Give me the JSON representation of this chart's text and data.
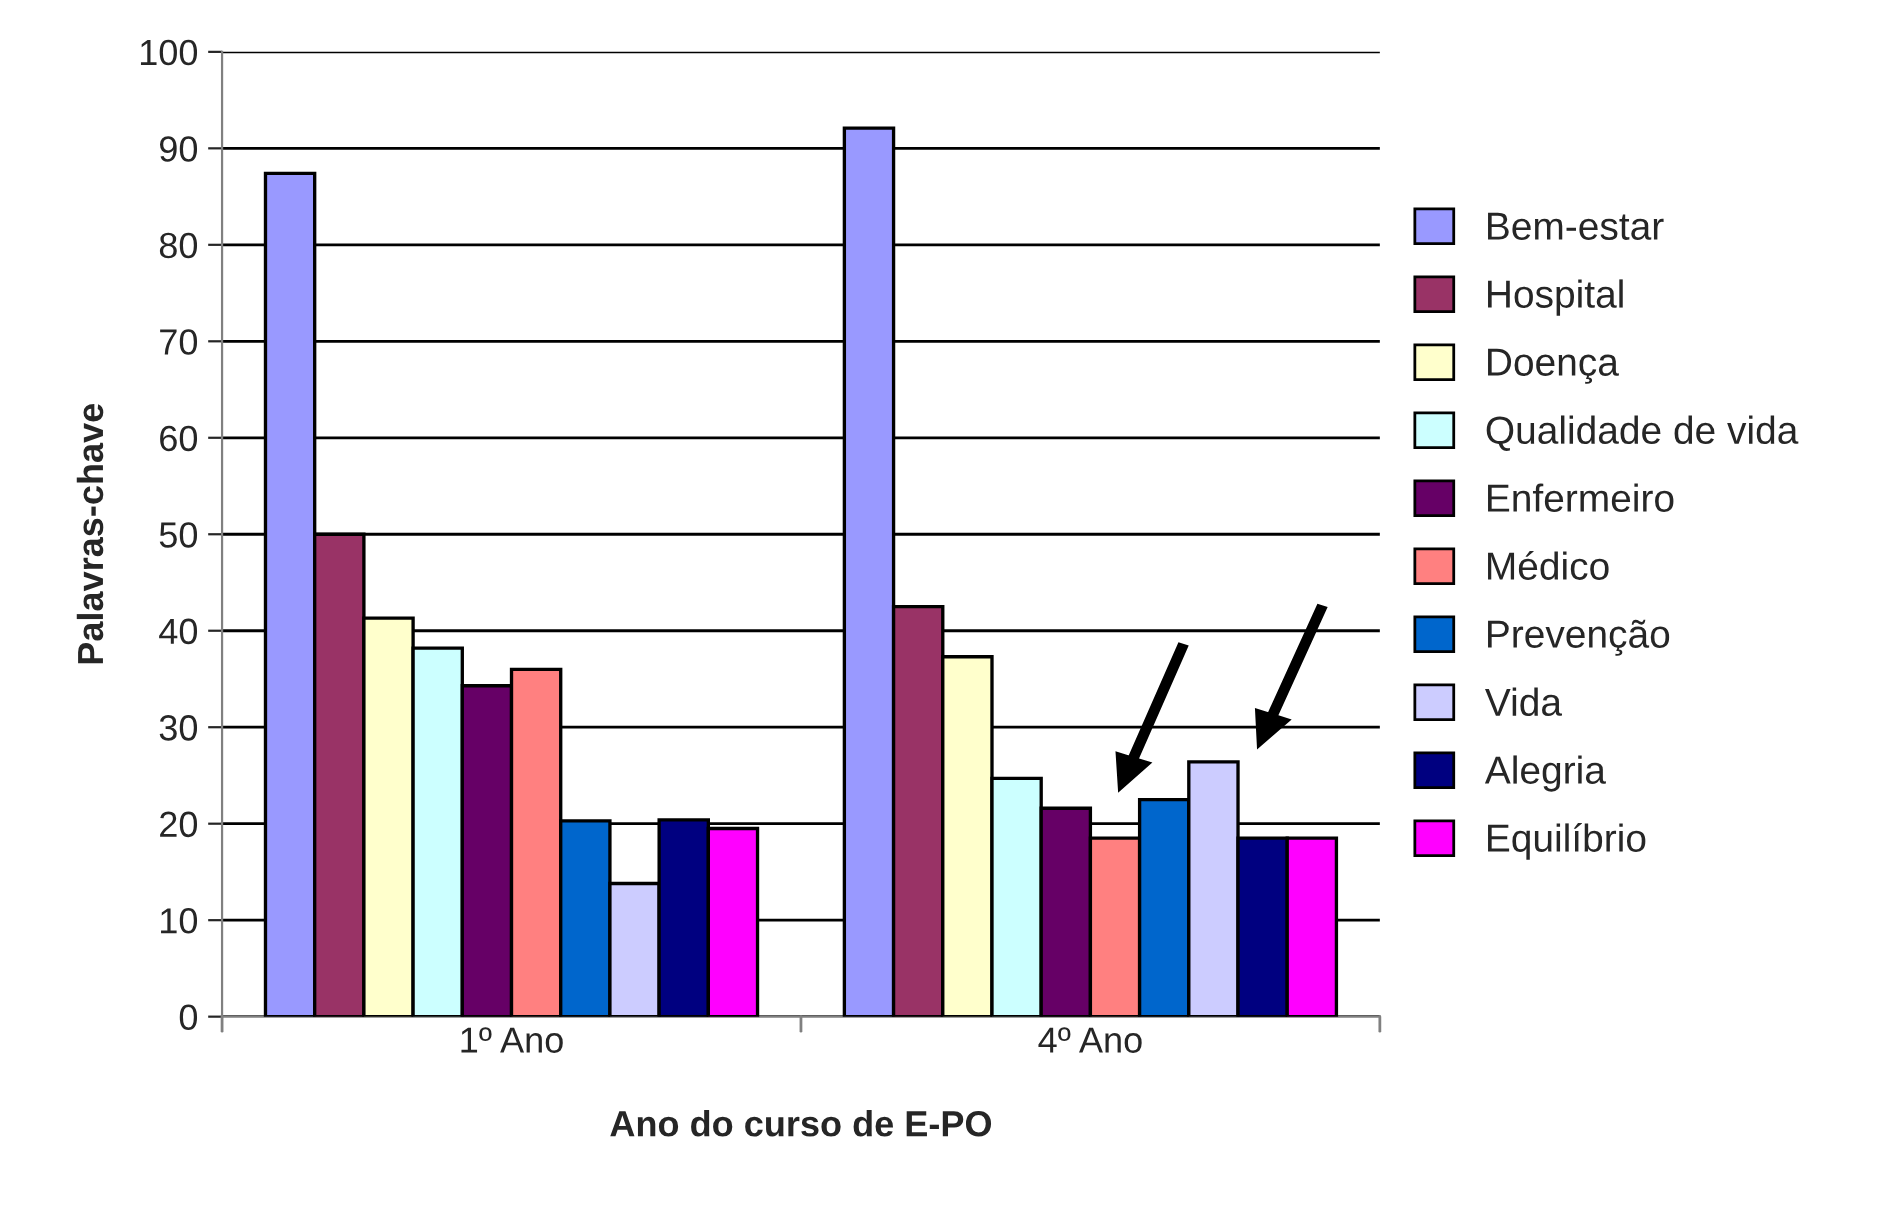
{
  "chart_data": {
    "type": "bar",
    "xlabel": "Ano do curso de E-PO",
    "ylabel": "Palavras-chave",
    "categories": [
      "1º Ano",
      "4º Ano"
    ],
    "series": [
      {
        "name": "Bem-estar",
        "color": "#9999ff",
        "values": [
          87.4,
          92.1
        ]
      },
      {
        "name": "Hospital",
        "color": "#993366",
        "values": [
          50,
          42.5
        ]
      },
      {
        "name": "Doença",
        "color": "#ffffcc",
        "values": [
          41.3,
          37.3
        ]
      },
      {
        "name": "Qualidade de vida",
        "color": "#ccffff",
        "values": [
          38.2,
          24.7
        ]
      },
      {
        "name": "Enfermeiro",
        "color": "#660066",
        "values": [
          34.3,
          21.6
        ]
      },
      {
        "name": "Médico",
        "color": "#ff8080",
        "values": [
          36,
          18.5
        ]
      },
      {
        "name": "Prevenção",
        "color": "#0066cc",
        "values": [
          20.3,
          22.5
        ]
      },
      {
        "name": "Vida",
        "color": "#ccccff",
        "values": [
          13.8,
          26.4
        ]
      },
      {
        "name": "Alegria",
        "color": "#000080",
        "values": [
          20.4,
          18.5
        ]
      },
      {
        "name": "Equilíbrio",
        "color": "#ff00ff",
        "values": [
          19.5,
          18.5
        ]
      }
    ],
    "ylim": [
      0,
      100
    ],
    "yticks": [
      0,
      10,
      20,
      30,
      40,
      50,
      60,
      70,
      80,
      90,
      100
    ],
    "grid": "y",
    "legend": "right"
  }
}
